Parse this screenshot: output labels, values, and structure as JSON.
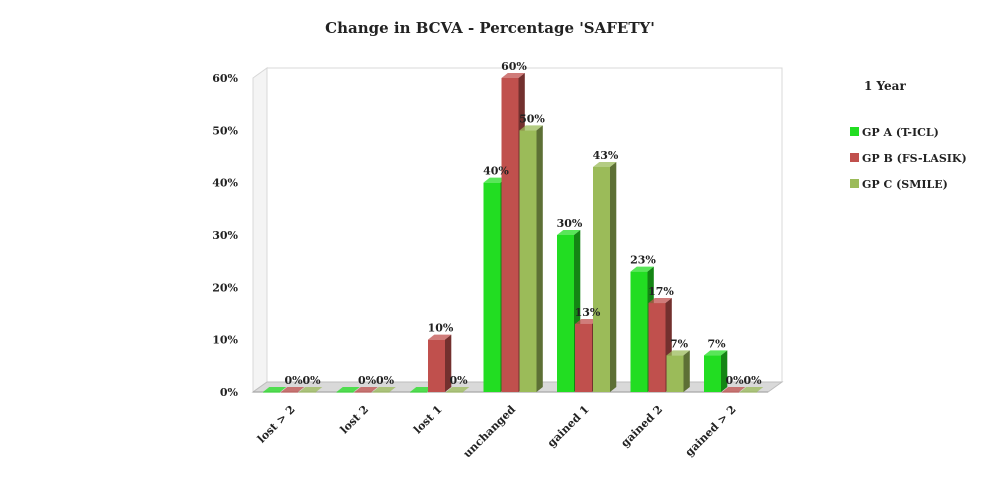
{
  "chart_data": {
    "type": "bar",
    "title": "Change in BCVA - Percentage 'SAFETY'",
    "xlabel": "",
    "ylabel": "",
    "ylim": [
      0,
      60
    ],
    "yticks": [
      "0%",
      "10%",
      "20%",
      "30%",
      "40%",
      "50%",
      "60%"
    ],
    "categories": [
      "lost > 2",
      "lost 2",
      "lost 1",
      "unchanged",
      "gained 1",
      "gained 2",
      "gained > 2"
    ],
    "legend_title": "1 Year",
    "legend_position": "right",
    "grid": false,
    "series": [
      {
        "name": "GP A (T-ICL)",
        "color": "#22dd22",
        "values": [
          0,
          0,
          0,
          40,
          30,
          23,
          7
        ],
        "labels": [
          "",
          "",
          "",
          "40%",
          "30%",
          "23%",
          "7%"
        ]
      },
      {
        "name": "GP B (FS-LASIK)",
        "color": "#c0504d",
        "values": [
          0,
          0,
          10,
          60,
          13,
          17,
          0
        ],
        "labels": [
          "0%",
          "0%",
          "10%",
          "60%",
          "13%",
          "17%",
          "0%"
        ]
      },
      {
        "name": "GP C (SMILE)",
        "color": "#9bbb59",
        "values": [
          0,
          0,
          0,
          50,
          43,
          7,
          0
        ],
        "labels": [
          "0%",
          "0%",
          "0%",
          "50%",
          "43%",
          "7%",
          "0%"
        ]
      }
    ]
  }
}
